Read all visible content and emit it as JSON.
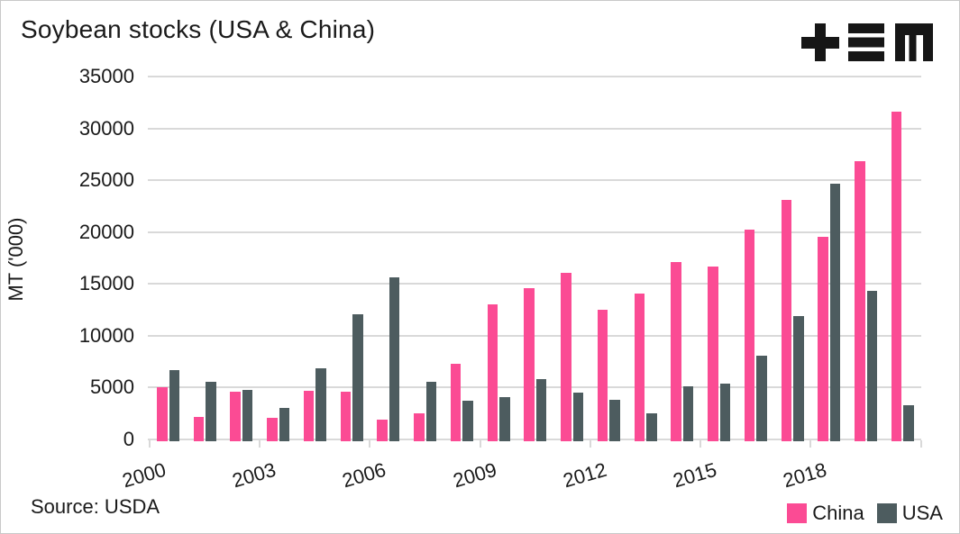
{
  "page": {
    "title": "Soybean stocks (USA & China)",
    "source": "Source: USDA",
    "logo": "plus-equals-m-logo"
  },
  "colors": {
    "china": "#FB4B94",
    "usa": "#4D5C5F",
    "gridline": "#D9D9D9",
    "text": "#1A1A1A",
    "logo": "#161616"
  },
  "chart_data": {
    "type": "bar",
    "title": "Soybean stocks (USA & China)",
    "xlabel": "",
    "ylabel": "MT ('000)",
    "ylim": [
      0,
      35000
    ],
    "ytick_step": 5000,
    "ytick_labels": [
      "0",
      "5000",
      "10000",
      "15000",
      "20000",
      "25000",
      "30000",
      "35000"
    ],
    "grid": true,
    "legend_position": "bottom-right",
    "source": "Source: USDA",
    "categories": [
      "2000",
      "2001",
      "2002",
      "2003",
      "2004",
      "2005",
      "2006",
      "2007",
      "2008",
      "2009",
      "2010",
      "2011",
      "2012",
      "2013",
      "2014",
      "2015",
      "2016",
      "2017",
      "2018",
      "2019",
      "2020"
    ],
    "xtick_labels": [
      "2000",
      "2003",
      "2006",
      "2009",
      "2012",
      "2015",
      "2018"
    ],
    "series": [
      {
        "name": "China",
        "color": "#FB4B94",
        "values": [
          5000,
          2200,
          4600,
          2100,
          4700,
          4600,
          1900,
          2500,
          7300,
          13000,
          14600,
          16100,
          12500,
          14100,
          17100,
          16700,
          20200,
          23100,
          19500,
          26800,
          31600
        ]
      },
      {
        "name": "USA",
        "color": "#4D5C5F",
        "values": [
          6700,
          5600,
          4800,
          3000,
          6900,
          12100,
          15600,
          5600,
          3700,
          4100,
          5800,
          4500,
          3800,
          2500,
          5100,
          5400,
          8100,
          11900,
          24700,
          14300,
          3300
        ]
      }
    ]
  }
}
